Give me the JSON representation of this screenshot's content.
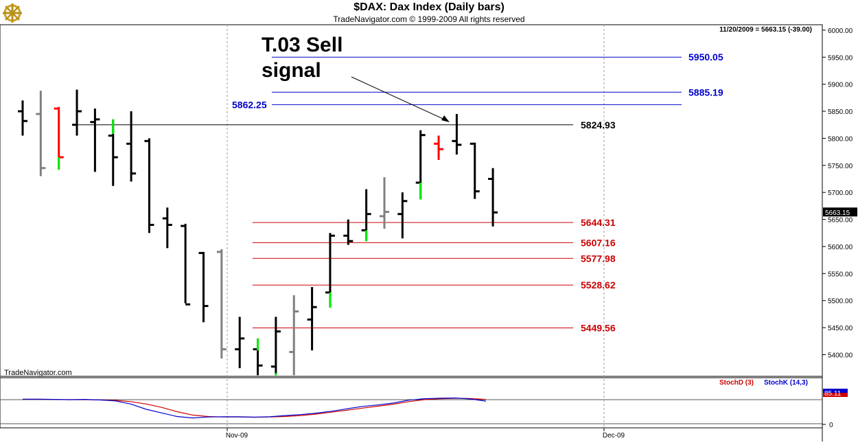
{
  "header": {
    "title": "$DAX:  Dax Index  (Daily bars)",
    "subtitle": "TradeNavigator.com © 1999-2009 All rights reserved",
    "status_line": "11/20/2009 = 5663.15 (-39.00)",
    "watermark": "TradeNavigator.com",
    "logo_icon": "gold-ship-wheel-logo-icon"
  },
  "annotation": {
    "line1": "T.03 Sell",
    "line2": "signal"
  },
  "colors": {
    "up_bar": "#000000",
    "down_bar": "#808080",
    "signal_red": "#ff0000",
    "signal_green": "#00ee00",
    "fib_red": "#cc0000",
    "target_blue": "#0000cc",
    "stochD": "#cc0000",
    "stochK": "#0000cc"
  },
  "chart_data": [
    {
      "type": "ohlc",
      "ylim": [
        5360,
        6010
      ],
      "yticks": [
        "6000.00",
        "5950.00",
        "5900.00",
        "5850.00",
        "5800.00",
        "5750.00",
        "5700.00",
        "5650.00",
        "5600.00",
        "5550.00",
        "5500.00",
        "5450.00",
        "5400.00"
      ],
      "xticks": [
        "Nov-09",
        "Dec-09"
      ],
      "last_price_label": "5663.15",
      "bars": [
        {
          "o": 5850,
          "h": 5870,
          "l": 5805,
          "c": 5832,
          "col": "up_bar"
        },
        {
          "o": 5845,
          "h": 5888,
          "l": 5730,
          "c": 5745,
          "col": "down_bar"
        },
        {
          "o": 5855,
          "h": 5858,
          "l": 5742,
          "c": 5765,
          "col": "signal_red",
          "tail": [
            5742,
            5765
          ]
        },
        {
          "o": 5825,
          "h": 5890,
          "l": 5805,
          "c": 5850,
          "col": "up_bar"
        },
        {
          "o": 5830,
          "h": 5855,
          "l": 5738,
          "c": 5835,
          "col": "up_bar"
        },
        {
          "o": 5805,
          "h": 5835,
          "l": 5712,
          "c": 5765,
          "col": "up_bar",
          "tail": [
            5808,
            5835
          ]
        },
        {
          "o": 5790,
          "h": 5850,
          "l": 5720,
          "c": 5735,
          "col": "up_bar"
        },
        {
          "o": 5795,
          "h": 5800,
          "l": 5625,
          "c": 5640,
          "col": "up_bar"
        },
        {
          "o": 5652,
          "h": 5672,
          "l": 5597,
          "c": 5640,
          "col": "up_bar"
        },
        {
          "o": 5638,
          "h": 5642,
          "l": 5495,
          "c": 5493,
          "col": "up_bar"
        },
        {
          "o": 5588,
          "h": 5590,
          "l": 5460,
          "c": 5490,
          "col": "up_bar"
        },
        {
          "o": 5590,
          "h": 5595,
          "l": 5393,
          "c": 5410,
          "col": "down_bar"
        },
        {
          "o": 5410,
          "h": 5470,
          "l": 5375,
          "c": 5430,
          "col": "up_bar"
        },
        {
          "o": 5410,
          "h": 5430,
          "l": 5362,
          "c": 5380,
          "col": "up_bar",
          "tail": [
            5408,
            5430
          ]
        },
        {
          "o": 5378,
          "h": 5470,
          "l": 5362,
          "c": 5443,
          "col": "up_bar",
          "tail": [
            5362,
            5366
          ]
        },
        {
          "o": 5405,
          "h": 5510,
          "l": 5362,
          "c": 5480,
          "col": "down_bar"
        },
        {
          "o": 5465,
          "h": 5525,
          "l": 5408,
          "c": 5488,
          "col": "up_bar"
        },
        {
          "o": 5515,
          "h": 5625,
          "l": 5487,
          "c": 5620,
          "col": "up_bar",
          "tail": [
            5487,
            5515
          ]
        },
        {
          "o": 5620,
          "h": 5650,
          "l": 5603,
          "c": 5610,
          "col": "up_bar"
        },
        {
          "o": 5630,
          "h": 5706,
          "l": 5610,
          "c": 5660,
          "col": "up_bar",
          "tail": [
            5610,
            5630
          ]
        },
        {
          "o": 5656,
          "h": 5728,
          "l": 5633,
          "c": 5664,
          "col": "down_bar"
        },
        {
          "o": 5660,
          "h": 5700,
          "l": 5615,
          "c": 5684,
          "col": "up_bar"
        },
        {
          "o": 5718,
          "h": 5815,
          "l": 5687,
          "c": 5806,
          "col": "up_bar",
          "tail": [
            5687,
            5718
          ]
        },
        {
          "o": 5790,
          "h": 5805,
          "l": 5760,
          "c": 5780,
          "col": "signal_red"
        },
        {
          "o": 5795,
          "h": 5845,
          "l": 5770,
          "c": 5788,
          "col": "up_bar"
        },
        {
          "o": 5790,
          "h": 5792,
          "l": 5688,
          "c": 5702,
          "col": "up_bar"
        },
        {
          "o": 5725,
          "h": 5745,
          "l": 5637,
          "c": 5663,
          "col": "up_bar"
        }
      ],
      "levels": [
        {
          "value": 5950.05,
          "label": "5950.05",
          "color": "target_blue",
          "label_side": "right"
        },
        {
          "value": 5885.19,
          "label": "5885.19",
          "color": "target_blue",
          "label_side": "right"
        },
        {
          "value": 5862.25,
          "label": "5862.25",
          "color": "target_blue",
          "label_side": "left"
        },
        {
          "value": 5824.93,
          "label": "5824.93",
          "color": "up_bar",
          "label_side": "right"
        },
        {
          "value": 5644.31,
          "label": "5644.31",
          "color": "fib_red",
          "label_side": "right"
        },
        {
          "value": 5607.16,
          "label": "5607.16",
          "color": "fib_red",
          "label_side": "right"
        },
        {
          "value": 5577.98,
          "label": "5577.98",
          "color": "fib_red",
          "label_side": "right"
        },
        {
          "value": 5528.62,
          "label": "5528.62",
          "color": "fib_red",
          "label_side": "right"
        },
        {
          "value": 5449.56,
          "label": "5449.56",
          "color": "fib_red",
          "label_side": "right"
        }
      ]
    },
    {
      "type": "line",
      "ylim": [
        0,
        100
      ],
      "yticks": [
        "0"
      ],
      "legend": [
        "StochD (3)",
        "StochK (14,3)"
      ],
      "last_value_label": "85.11",
      "series": [
        {
          "name": "StochD (3)",
          "color": "stochD",
          "values": [
            82,
            82,
            81,
            80,
            80,
            79,
            77,
            72,
            62,
            48,
            30,
            16,
            10,
            8,
            8,
            7,
            8,
            10,
            14,
            20,
            28,
            36,
            45,
            53,
            61,
            72,
            80,
            84,
            86,
            85,
            81
          ]
        },
        {
          "name": "StochK (14,3)",
          "color": "stochK",
          "values": [
            82,
            82,
            81,
            80,
            81,
            79,
            75,
            62,
            40,
            25,
            10,
            4,
            8,
            9,
            9,
            7,
            9,
            14,
            18,
            24,
            32,
            42,
            52,
            58,
            66,
            78,
            84,
            86,
            87,
            83,
            74
          ]
        }
      ]
    }
  ]
}
